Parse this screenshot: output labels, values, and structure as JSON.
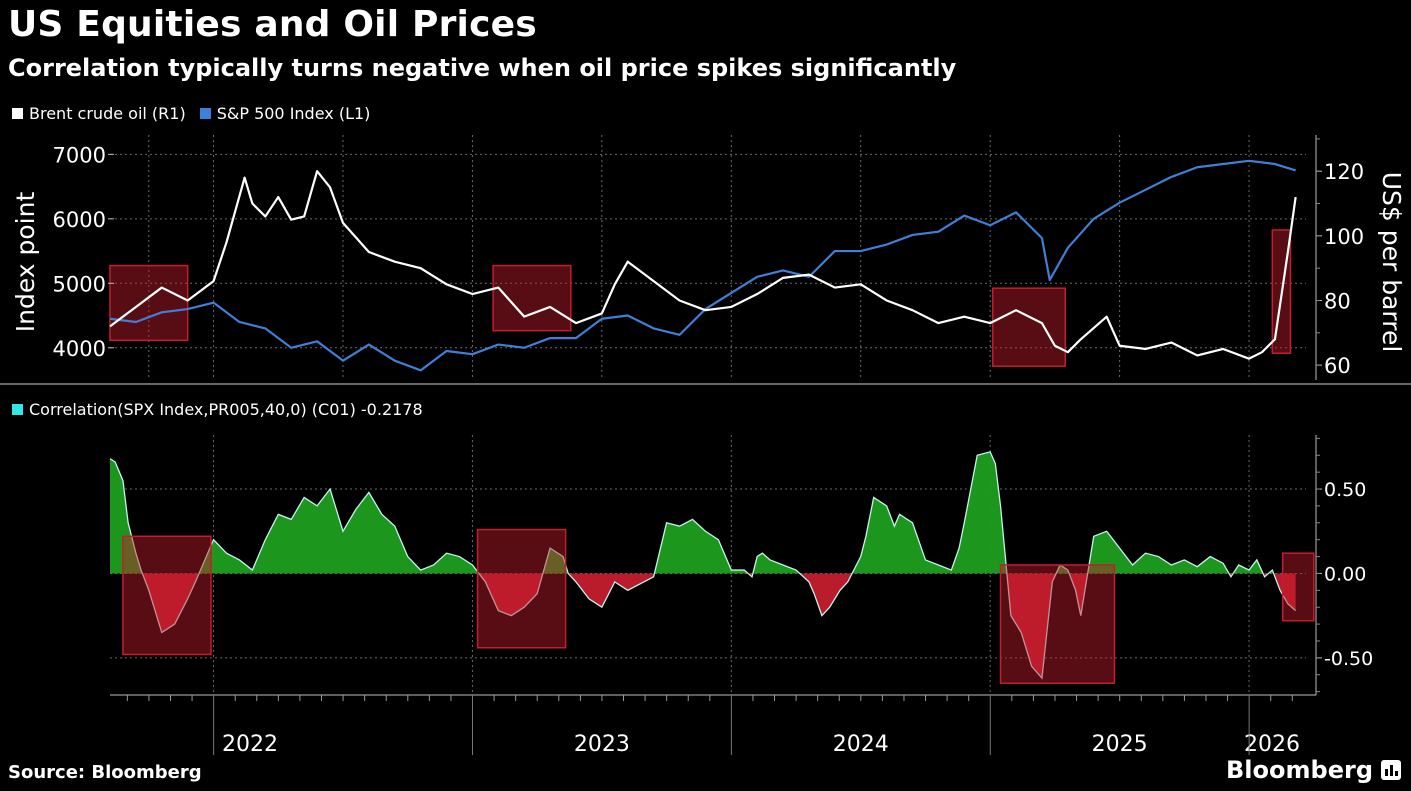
{
  "header": {
    "title": "US Equities and Oil Prices",
    "subtitle": "Correlation typically turns negative when oil price spikes significantly"
  },
  "footer": {
    "source": "Source: Bloomberg",
    "brand": "Bloomberg"
  },
  "colors": {
    "brent": "#ffffff",
    "spx": "#3f7fd8",
    "corr_legend": "#33e6e6",
    "corr_pos": "#1f9e1f",
    "corr_neg": "#c41d2d",
    "highlight": "#c41d2d"
  },
  "chart_data": [
    {
      "type": "line",
      "title": "US Equities and Oil Prices",
      "x_range": [
        2021.6,
        2026.22
      ],
      "y_left": {
        "label": "Index point",
        "lim": [
          3500,
          7300
        ],
        "ticks": [
          "4000",
          "5000",
          "6000",
          "7000"
        ]
      },
      "y_right": {
        "label": "US$ per barrel",
        "lim": [
          55.4,
          131.2
        ],
        "ticks": [
          "60",
          "80",
          "100",
          "120"
        ]
      },
      "legend": [
        "Brent crude oil (R1)",
        "S&P 500 Index (L1)"
      ],
      "series": [
        {
          "name": "Brent crude oil (R1)",
          "axis": "right",
          "x": [
            2021.6,
            2021.7,
            2021.8,
            2021.9,
            2022.0,
            2022.05,
            2022.12,
            2022.15,
            2022.2,
            2022.25,
            2022.3,
            2022.35,
            2022.4,
            2022.45,
            2022.5,
            2022.6,
            2022.7,
            2022.8,
            2022.9,
            2023.0,
            2023.1,
            2023.2,
            2023.3,
            2023.4,
            2023.5,
            2023.55,
            2023.6,
            2023.7,
            2023.8,
            2023.9,
            2024.0,
            2024.1,
            2024.2,
            2024.3,
            2024.4,
            2024.5,
            2024.6,
            2024.7,
            2024.8,
            2024.9,
            2025.0,
            2025.1,
            2025.2,
            2025.25,
            2025.3,
            2025.35,
            2025.45,
            2025.5,
            2025.6,
            2025.7,
            2025.8,
            2025.9,
            2026.0,
            2026.05,
            2026.1,
            2026.15,
            2026.18
          ],
          "values": [
            72,
            78,
            84,
            80,
            86,
            98,
            118,
            110,
            106,
            112,
            105,
            106,
            120,
            115,
            104,
            95,
            92,
            90,
            85,
            82,
            84,
            75,
            78,
            73,
            76,
            85,
            92,
            86,
            80,
            77,
            78,
            82,
            87,
            88,
            84,
            85,
            80,
            77,
            73,
            75,
            73,
            77,
            73,
            66,
            64,
            68,
            75,
            66,
            65,
            67,
            63,
            65,
            62,
            64,
            68,
            95,
            112
          ]
        },
        {
          "name": "S&P 500 Index (L1)",
          "axis": "left",
          "x": [
            2021.6,
            2021.7,
            2021.8,
            2021.9,
            2022.0,
            2022.1,
            2022.2,
            2022.3,
            2022.4,
            2022.5,
            2022.6,
            2022.7,
            2022.8,
            2022.9,
            2023.0,
            2023.1,
            2023.2,
            2023.3,
            2023.4,
            2023.5,
            2023.6,
            2023.7,
            2023.8,
            2023.9,
            2024.0,
            2024.1,
            2024.2,
            2024.3,
            2024.4,
            2024.5,
            2024.6,
            2024.7,
            2024.8,
            2024.9,
            2025.0,
            2025.1,
            2025.2,
            2025.23,
            2025.3,
            2025.4,
            2025.5,
            2025.6,
            2025.7,
            2025.8,
            2025.9,
            2026.0,
            2026.1,
            2026.18
          ],
          "values": [
            4450,
            4400,
            4550,
            4600,
            4700,
            4400,
            4300,
            4000,
            4100,
            3800,
            4050,
            3800,
            3650,
            3950,
            3900,
            4050,
            4000,
            4150,
            4150,
            4450,
            4500,
            4300,
            4200,
            4600,
            4850,
            5100,
            5200,
            5100,
            5500,
            5500,
            5600,
            5750,
            5800,
            6050,
            5900,
            6100,
            5700,
            5050,
            5550,
            6000,
            6250,
            6450,
            6650,
            6800,
            6850,
            6900,
            6850,
            6750
          ]
        }
      ],
      "highlights": [
        [
          2021.6,
          2021.9
        ],
        [
          2023.08,
          2023.38
        ],
        [
          2025.01,
          2025.29
        ],
        [
          2026.09,
          2026.16
        ]
      ]
    },
    {
      "type": "area",
      "title": "Correlation(SPX Index,PR005,40,0) (C01) -0.2178",
      "legend": [
        "Correlation(SPX Index,PR005,40,0) (C01) -0.2178"
      ],
      "ylim": [
        -0.72,
        0.82
      ],
      "yticks": [
        "0.50",
        "0.00",
        "-0.50"
      ],
      "xticks": [
        "2022",
        "2023",
        "2024",
        "2025",
        "2026"
      ],
      "series": [
        {
          "name": "Correlation(SPX Index,PR005,40,0) (C01)",
          "x": [
            2021.6,
            2021.62,
            2021.65,
            2021.67,
            2021.7,
            2021.72,
            2021.75,
            2021.78,
            2021.8,
            2021.85,
            2021.9,
            2021.93,
            2022.0,
            2022.05,
            2022.1,
            2022.15,
            2022.2,
            2022.25,
            2022.3,
            2022.35,
            2022.4,
            2022.45,
            2022.5,
            2022.55,
            2022.6,
            2022.65,
            2022.7,
            2022.75,
            2022.8,
            2022.85,
            2022.9,
            2022.95,
            2023.0,
            2023.05,
            2023.1,
            2023.15,
            2023.2,
            2023.25,
            2023.3,
            2023.35,
            2023.37,
            2023.4,
            2023.45,
            2023.5,
            2023.55,
            2023.6,
            2023.65,
            2023.7,
            2023.75,
            2023.8,
            2023.85,
            2023.9,
            2023.95,
            2024.0,
            2024.05,
            2024.08,
            2024.1,
            2024.12,
            2024.15,
            2024.2,
            2024.25,
            2024.3,
            2024.32,
            2024.35,
            2024.38,
            2024.42,
            2024.45,
            2024.5,
            2024.52,
            2024.55,
            2024.6,
            2024.63,
            2024.65,
            2024.7,
            2024.75,
            2024.8,
            2024.85,
            2024.88,
            2024.9,
            2024.95,
            2025.0,
            2025.02,
            2025.04,
            2025.08,
            2025.12,
            2025.16,
            2025.2,
            2025.24,
            2025.27,
            2025.3,
            2025.33,
            2025.35,
            2025.4,
            2025.45,
            2025.5,
            2025.55,
            2025.6,
            2025.65,
            2025.7,
            2025.75,
            2025.8,
            2025.85,
            2025.9,
            2025.93,
            2025.96,
            2026.0,
            2026.03,
            2026.06,
            2026.09,
            2026.12,
            2026.15,
            2026.18
          ],
          "values": [
            0.68,
            0.66,
            0.55,
            0.3,
            0.12,
            0.02,
            -0.1,
            -0.25,
            -0.35,
            -0.3,
            -0.15,
            -0.05,
            0.2,
            0.12,
            0.08,
            0.02,
            0.2,
            0.35,
            0.32,
            0.45,
            0.4,
            0.5,
            0.25,
            0.38,
            0.48,
            0.35,
            0.28,
            0.1,
            0.02,
            0.05,
            0.12,
            0.1,
            0.05,
            -0.05,
            -0.22,
            -0.25,
            -0.2,
            -0.12,
            0.15,
            0.1,
            0.0,
            -0.05,
            -0.15,
            -0.2,
            -0.05,
            -0.1,
            -0.06,
            -0.02,
            0.3,
            0.28,
            0.32,
            0.25,
            0.2,
            0.02,
            0.02,
            -0.02,
            0.1,
            0.12,
            0.08,
            0.05,
            0.02,
            -0.05,
            -0.12,
            -0.25,
            -0.2,
            -0.1,
            -0.05,
            0.1,
            0.22,
            0.45,
            0.4,
            0.28,
            0.35,
            0.3,
            0.08,
            0.05,
            0.02,
            0.15,
            0.3,
            0.7,
            0.72,
            0.65,
            0.4,
            -0.25,
            -0.35,
            -0.55,
            -0.62,
            -0.05,
            0.05,
            0.02,
            -0.1,
            -0.25,
            0.22,
            0.25,
            0.15,
            0.05,
            0.12,
            0.1,
            0.05,
            0.08,
            0.04,
            0.1,
            0.06,
            -0.02,
            0.05,
            0.02,
            0.08,
            -0.02,
            0.02,
            -0.1,
            -0.18,
            -0.22
          ]
        }
      ],
      "highlights": [
        [
          2021.65,
          2021.99,
          -0.48,
          0.22
        ],
        [
          2023.02,
          2023.36,
          -0.44,
          0.26
        ],
        [
          2025.04,
          2025.48,
          -0.65,
          0.05
        ],
        [
          2026.13,
          2026.25,
          -0.28,
          0.12
        ]
      ]
    }
  ]
}
